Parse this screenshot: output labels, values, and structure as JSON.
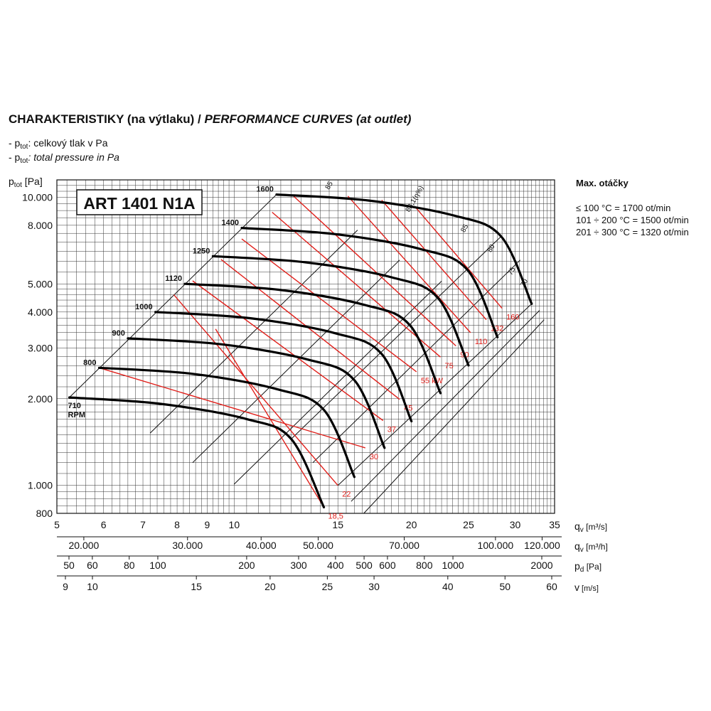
{
  "header": {
    "title_cz": "CHARAKTERISTIKY (na výtlaku) / ",
    "title_en": "PERFORMANCE CURVES (at outlet)",
    "legend_prefix": "- p",
    "legend_sub": "tot",
    "legend_cz": ": celkový tlak v Pa",
    "legend_en": ": total pressure in Pa"
  },
  "max_speed": {
    "heading": "Max. otáčky",
    "rows": [
      "≤ 100 °C = 1700 ot/min",
      "101 ÷ 200 °C = 1500 ot/min",
      "201 ÷ 300 °C = 1320 ot/min"
    ]
  },
  "chart_data": {
    "type": "line",
    "model": "ART 1401 N1A",
    "y_axis": {
      "label_main": "p",
      "label_sub": "tot",
      "label_unit": " [Pa]",
      "scale": "log",
      "range": [
        800,
        11500
      ],
      "ticks": [
        800,
        1000,
        2000,
        3000,
        4000,
        5000,
        8000,
        10000
      ],
      "tick_labels": [
        "800",
        "1.000",
        "2.000",
        "3.000",
        "4.000",
        "5.000",
        "8.000",
        "10.000"
      ]
    },
    "x_axis": {
      "label": "q",
      "label_sub": "v",
      "label_unit": " [m³/s]",
      "scale": "log",
      "range": [
        5,
        35
      ],
      "ticks": [
        5,
        6,
        7,
        8,
        9,
        10,
        15,
        20,
        25,
        30,
        35
      ],
      "tick_labels": [
        "5",
        "6",
        "7",
        "8",
        "9",
        "10",
        "15",
        "20",
        "25",
        "30",
        "35"
      ]
    },
    "secondary_axes": [
      {
        "label": "q",
        "label_sub": "v",
        "label_unit": " [m³/h]",
        "ticks": [
          20000,
          30000,
          40000,
          50000,
          70000,
          100000,
          120000
        ],
        "tick_labels": [
          "20.000",
          "30.000",
          "40.000",
          "50.000",
          "70.000",
          "100.000",
          "120.000"
        ]
      },
      {
        "label": "p",
        "label_sub": "d",
        "label_unit": " [Pa]",
        "ticks": [
          50,
          60,
          80,
          100,
          200,
          300,
          400,
          500,
          600,
          800,
          1000,
          2000
        ],
        "tick_labels": [
          "50",
          "60",
          "80",
          "100",
          "200",
          "300",
          "400",
          "500",
          "600",
          "800",
          "1000",
          "2000"
        ]
      },
      {
        "label": "v",
        "label_sub": "",
        "label_unit": " [m/s]",
        "ticks": [
          9,
          10,
          15,
          20,
          25,
          30,
          40,
          50,
          60
        ],
        "tick_labels": [
          "9",
          "10",
          "15",
          "20",
          "25",
          "30",
          "40",
          "50",
          "60"
        ]
      }
    ],
    "rpm_unit": "RPM",
    "speed_curves": [
      {
        "rpm": "710",
        "points": [
          [
            5.25,
            2020
          ],
          [
            7.5,
            1920
          ],
          [
            10.5,
            1700
          ],
          [
            12.5,
            1450
          ],
          [
            14.2,
            840
          ]
        ]
      },
      {
        "rpm": "800",
        "points": [
          [
            5.9,
            2560
          ],
          [
            8.5,
            2440
          ],
          [
            11.8,
            2160
          ],
          [
            14.2,
            1830
          ],
          [
            16.0,
            1070
          ]
        ]
      },
      {
        "rpm": "900",
        "points": [
          [
            6.6,
            3240
          ],
          [
            9.5,
            3090
          ],
          [
            13.3,
            2740
          ],
          [
            16.0,
            2320
          ],
          [
            18.0,
            1350
          ]
        ]
      },
      {
        "rpm": "1000",
        "points": [
          [
            7.35,
            4000
          ],
          [
            10.6,
            3810
          ],
          [
            14.8,
            3380
          ],
          [
            17.8,
            2860
          ],
          [
            20.0,
            1670
          ]
        ]
      },
      {
        "rpm": "1120",
        "points": [
          [
            8.25,
            5010
          ],
          [
            11.9,
            4780
          ],
          [
            16.6,
            4240
          ],
          [
            19.9,
            3590
          ],
          [
            22.4,
            2090
          ]
        ]
      },
      {
        "rpm": "1250",
        "points": [
          [
            9.2,
            6250
          ],
          [
            13.2,
            5950
          ],
          [
            18.5,
            5280
          ],
          [
            22.2,
            4470
          ],
          [
            25.0,
            2610
          ]
        ]
      },
      {
        "rpm": "1400",
        "points": [
          [
            10.3,
            7830
          ],
          [
            14.8,
            7460
          ],
          [
            20.7,
            6620
          ],
          [
            24.9,
            5600
          ],
          [
            28.0,
            3270
          ]
        ]
      },
      {
        "rpm": "1600",
        "points": [
          [
            11.8,
            10230
          ],
          [
            16.9,
            9750
          ],
          [
            23.6,
            8650
          ],
          [
            28.4,
            7320
          ],
          [
            32.0,
            4270
          ]
        ]
      }
    ],
    "power_lines": [
      {
        "label": "18,5",
        "kw": 18.5,
        "points": [
          [
            9.3,
            3490
          ],
          [
            14.2,
            840
          ]
        ]
      },
      {
        "label": "22",
        "kw": 22,
        "points": [
          [
            7.9,
            4590
          ],
          [
            15.0,
            1000
          ]
        ]
      },
      {
        "label": "30",
        "kw": 30,
        "points": [
          [
            5.9,
            2560
          ],
          [
            16.7,
            1350
          ]
        ]
      },
      {
        "label": "37",
        "kw": 37,
        "points": [
          [
            8.5,
            5130
          ],
          [
            17.9,
            1680
          ]
        ]
      },
      {
        "label": "45",
        "kw": 45,
        "points": [
          [
            9.5,
            6090
          ],
          [
            19.1,
            1990
          ]
        ]
      },
      {
        "label": "55 kW",
        "kw": 55,
        "points": [
          [
            10.3,
            7170
          ],
          [
            20.4,
            2480
          ]
        ]
      },
      {
        "label": "75",
        "kw": 75,
        "points": [
          [
            11.6,
            8880
          ],
          [
            22.4,
            2790
          ]
        ]
      },
      {
        "label": "90",
        "kw": 90,
        "points": [
          [
            12.6,
            10120
          ],
          [
            23.8,
            3050
          ]
        ]
      },
      {
        "label": "110",
        "kw": 110,
        "points": [
          [
            25.2,
            3390
          ],
          [
            15.6,
            10100
          ]
        ]
      },
      {
        "label": "132",
        "kw": 132,
        "points": [
          [
            26.8,
            3760
          ],
          [
            17.8,
            9780
          ]
        ]
      },
      {
        "label": "160",
        "kw": 160,
        "points": [
          [
            28.5,
            4120
          ],
          [
            20.3,
            9260
          ]
        ]
      }
    ],
    "efficiency_lines": [
      {
        "label": "70",
        "points": [
          [
            5.25,
            2020
          ],
          [
            11.8,
            10230
          ]
        ]
      },
      {
        "label": "75",
        "points": [
          [
            7.2,
            1520
          ],
          [
            16.2,
            7700
          ]
        ]
      },
      {
        "label": "80",
        "points": [
          [
            8.5,
            1200
          ],
          [
            19.1,
            6060
          ]
        ]
      },
      {
        "label": "85",
        "points": [
          [
            10.0,
            1010
          ],
          [
            22.5,
            5120
          ]
        ]
      },
      {
        "label": "88,1(η%)",
        "points": [
          [
            12.5,
            1450
          ],
          [
            28.4,
            7320
          ]
        ]
      },
      {
        "label": "85",
        "points": [
          [
            13.6,
            1200
          ],
          [
            30.6,
            6060
          ]
        ]
      },
      {
        "label": "80",
        "points": [
          [
            15.0,
            1000
          ],
          [
            32.0,
            4270
          ]
        ]
      },
      {
        "label": "75",
        "points": [
          [
            15.8,
            880
          ],
          [
            33.0,
            4050
          ]
        ]
      },
      {
        "label": "70",
        "points": [
          [
            16.6,
            800
          ],
          [
            33.6,
            3760
          ]
        ]
      }
    ],
    "efficiency_label_positions": [
      {
        "label": "85",
        "at": [
          14.6,
          10900
        ]
      },
      {
        "label": "88,1(η%)",
        "at": [
          20.4,
          9800
        ]
      },
      {
        "label": "85",
        "at": [
          24.8,
          7740
        ]
      },
      {
        "label": "80",
        "at": [
          27.5,
          6600
        ]
      },
      {
        "label": "75",
        "at": [
          29.8,
          5500
        ]
      },
      {
        "label": "70",
        "at": [
          31.3,
          5000
        ]
      }
    ],
    "grid": true
  }
}
